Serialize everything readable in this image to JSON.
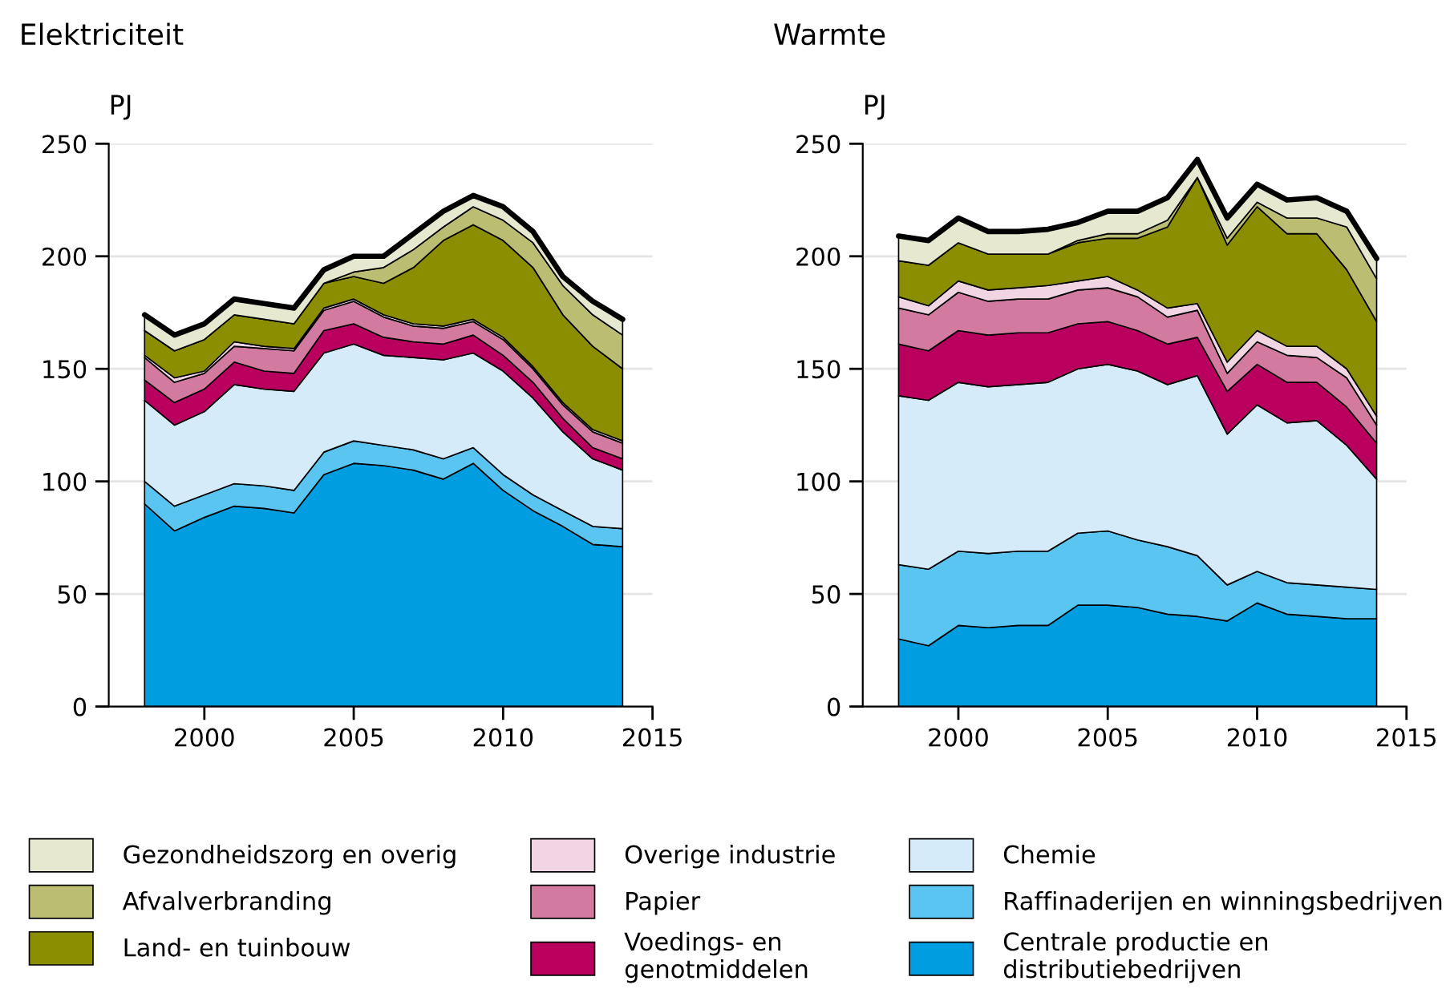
{
  "chart_data": [
    {
      "type": "area",
      "stacked": true,
      "title": "Elektriciteit",
      "ylabel": "PJ",
      "x": [
        1998,
        1999,
        2000,
        2001,
        2002,
        2003,
        2004,
        2005,
        2006,
        2007,
        2008,
        2009,
        2010,
        2011,
        2012,
        2013,
        2014
      ],
      "xlim": [
        1996.8,
        2015
      ],
      "xticks": [
        2000,
        2005,
        2010,
        2015
      ],
      "ylim": [
        0,
        250
      ],
      "yticks": [
        0,
        50,
        100,
        150,
        200,
        250
      ],
      "grid": "y",
      "legend": "bottom",
      "series": [
        {
          "name": "Centrale productie en\ndistributiebedrijven",
          "color": "#009de0",
          "values": [
            90,
            78,
            84,
            89,
            88,
            86,
            103,
            108,
            107,
            105,
            101,
            108,
            96,
            87,
            80,
            72,
            71
          ]
        },
        {
          "name": "Raffinaderijen en winningsbedrijven",
          "color": "#5bc5f2",
          "values": [
            10,
            11,
            10,
            10,
            10,
            10,
            10,
            10,
            9,
            9,
            9,
            7,
            7,
            7,
            7,
            8,
            8
          ]
        },
        {
          "name": "Chemie",
          "color": "#d5ebfa",
          "values": [
            36,
            36,
            37,
            44,
            43,
            44,
            44,
            43,
            40,
            41,
            44,
            42,
            46,
            43,
            35,
            30,
            26
          ]
        },
        {
          "name": "Voedings- en\ngenotmiddelen",
          "color": "#b9005e",
          "values": [
            9,
            10,
            10,
            10,
            8,
            8,
            10,
            9,
            8,
            7,
            7,
            8,
            7,
            7,
            6,
            5,
            5
          ]
        },
        {
          "name": "Papier",
          "color": "#d27aa0",
          "values": [
            10,
            9,
            7,
            7,
            10,
            10,
            9,
            10,
            9,
            7,
            7,
            6,
            7,
            6,
            6,
            7,
            7
          ]
        },
        {
          "name": "Overige industrie",
          "color": "#f2d5e3",
          "values": [
            1,
            2,
            1,
            2,
            1,
            1,
            1,
            1,
            1,
            1,
            1,
            1,
            1,
            1,
            1,
            1,
            1
          ]
        },
        {
          "name": "Land- en tuinbouw",
          "color": "#8b8e00",
          "values": [
            11,
            12,
            14,
            12,
            12,
            11,
            11,
            10,
            14,
            25,
            38,
            42,
            43,
            44,
            39,
            37,
            32
          ]
        },
        {
          "name": "Afvalverbranding",
          "color": "#bbbd72",
          "values": [
            0,
            0,
            0,
            0,
            0,
            0,
            0,
            2,
            7,
            8,
            6,
            8,
            9,
            11,
            13,
            14,
            15
          ]
        },
        {
          "name": "Gezondheidszorg en overig",
          "color": "#e6e8d0",
          "values": [
            7,
            7,
            7,
            7,
            7,
            7,
            6,
            7,
            5,
            7,
            7,
            5,
            6,
            5,
            4,
            6,
            7
          ]
        }
      ]
    },
    {
      "type": "area",
      "stacked": true,
      "title": "Warmte",
      "ylabel": "PJ",
      "x": [
        1998,
        1999,
        2000,
        2001,
        2002,
        2003,
        2004,
        2005,
        2006,
        2007,
        2008,
        2009,
        2010,
        2011,
        2012,
        2013,
        2014
      ],
      "xlim": [
        1996.8,
        2015
      ],
      "xticks": [
        2000,
        2005,
        2010,
        2015
      ],
      "ylim": [
        0,
        250
      ],
      "yticks": [
        0,
        50,
        100,
        150,
        200,
        250
      ],
      "grid": "y",
      "series": [
        {
          "color": "#009de0",
          "values": [
            30,
            27,
            36,
            35,
            36,
            36,
            45,
            45,
            44,
            41,
            40,
            38,
            46,
            41,
            40,
            39,
            39
          ]
        },
        {
          "color": "#5bc5f2",
          "values": [
            33,
            34,
            33,
            33,
            33,
            33,
            32,
            33,
            30,
            30,
            27,
            16,
            14,
            14,
            14,
            14,
            13
          ]
        },
        {
          "color": "#d5ebfa",
          "values": [
            75,
            75,
            75,
            74,
            74,
            75,
            73,
            74,
            75,
            72,
            80,
            67,
            74,
            71,
            73,
            63,
            49
          ]
        },
        {
          "color": "#b9005e",
          "values": [
            23,
            22,
            23,
            23,
            23,
            22,
            20,
            19,
            18,
            18,
            17,
            19,
            18,
            18,
            17,
            17,
            16
          ]
        },
        {
          "color": "#d27aa0",
          "values": [
            16,
            16,
            17,
            15,
            15,
            15,
            15,
            15,
            15,
            12,
            12,
            8,
            10,
            12,
            11,
            13,
            8
          ]
        },
        {
          "color": "#f2d5e3",
          "values": [
            5,
            4,
            5,
            5,
            5,
            6,
            4,
            5,
            3,
            4,
            3,
            5,
            5,
            4,
            5,
            4,
            4
          ]
        },
        {
          "color": "#8b8e00",
          "values": [
            16,
            18,
            17,
            16,
            15,
            14,
            17,
            17,
            23,
            36,
            56,
            52,
            55,
            50,
            50,
            44,
            42
          ]
        },
        {
          "color": "#bbbd72",
          "values": [
            0,
            0,
            0,
            0,
            0,
            0,
            1,
            2,
            2,
            3,
            0,
            3,
            2,
            7,
            7,
            19,
            19
          ]
        },
        {
          "color": "#e6e8d0",
          "values": [
            11,
            11,
            11,
            10,
            10,
            11,
            8,
            10,
            10,
            10,
            8,
            9,
            8,
            8,
            9,
            7,
            9
          ]
        }
      ]
    }
  ]
}
